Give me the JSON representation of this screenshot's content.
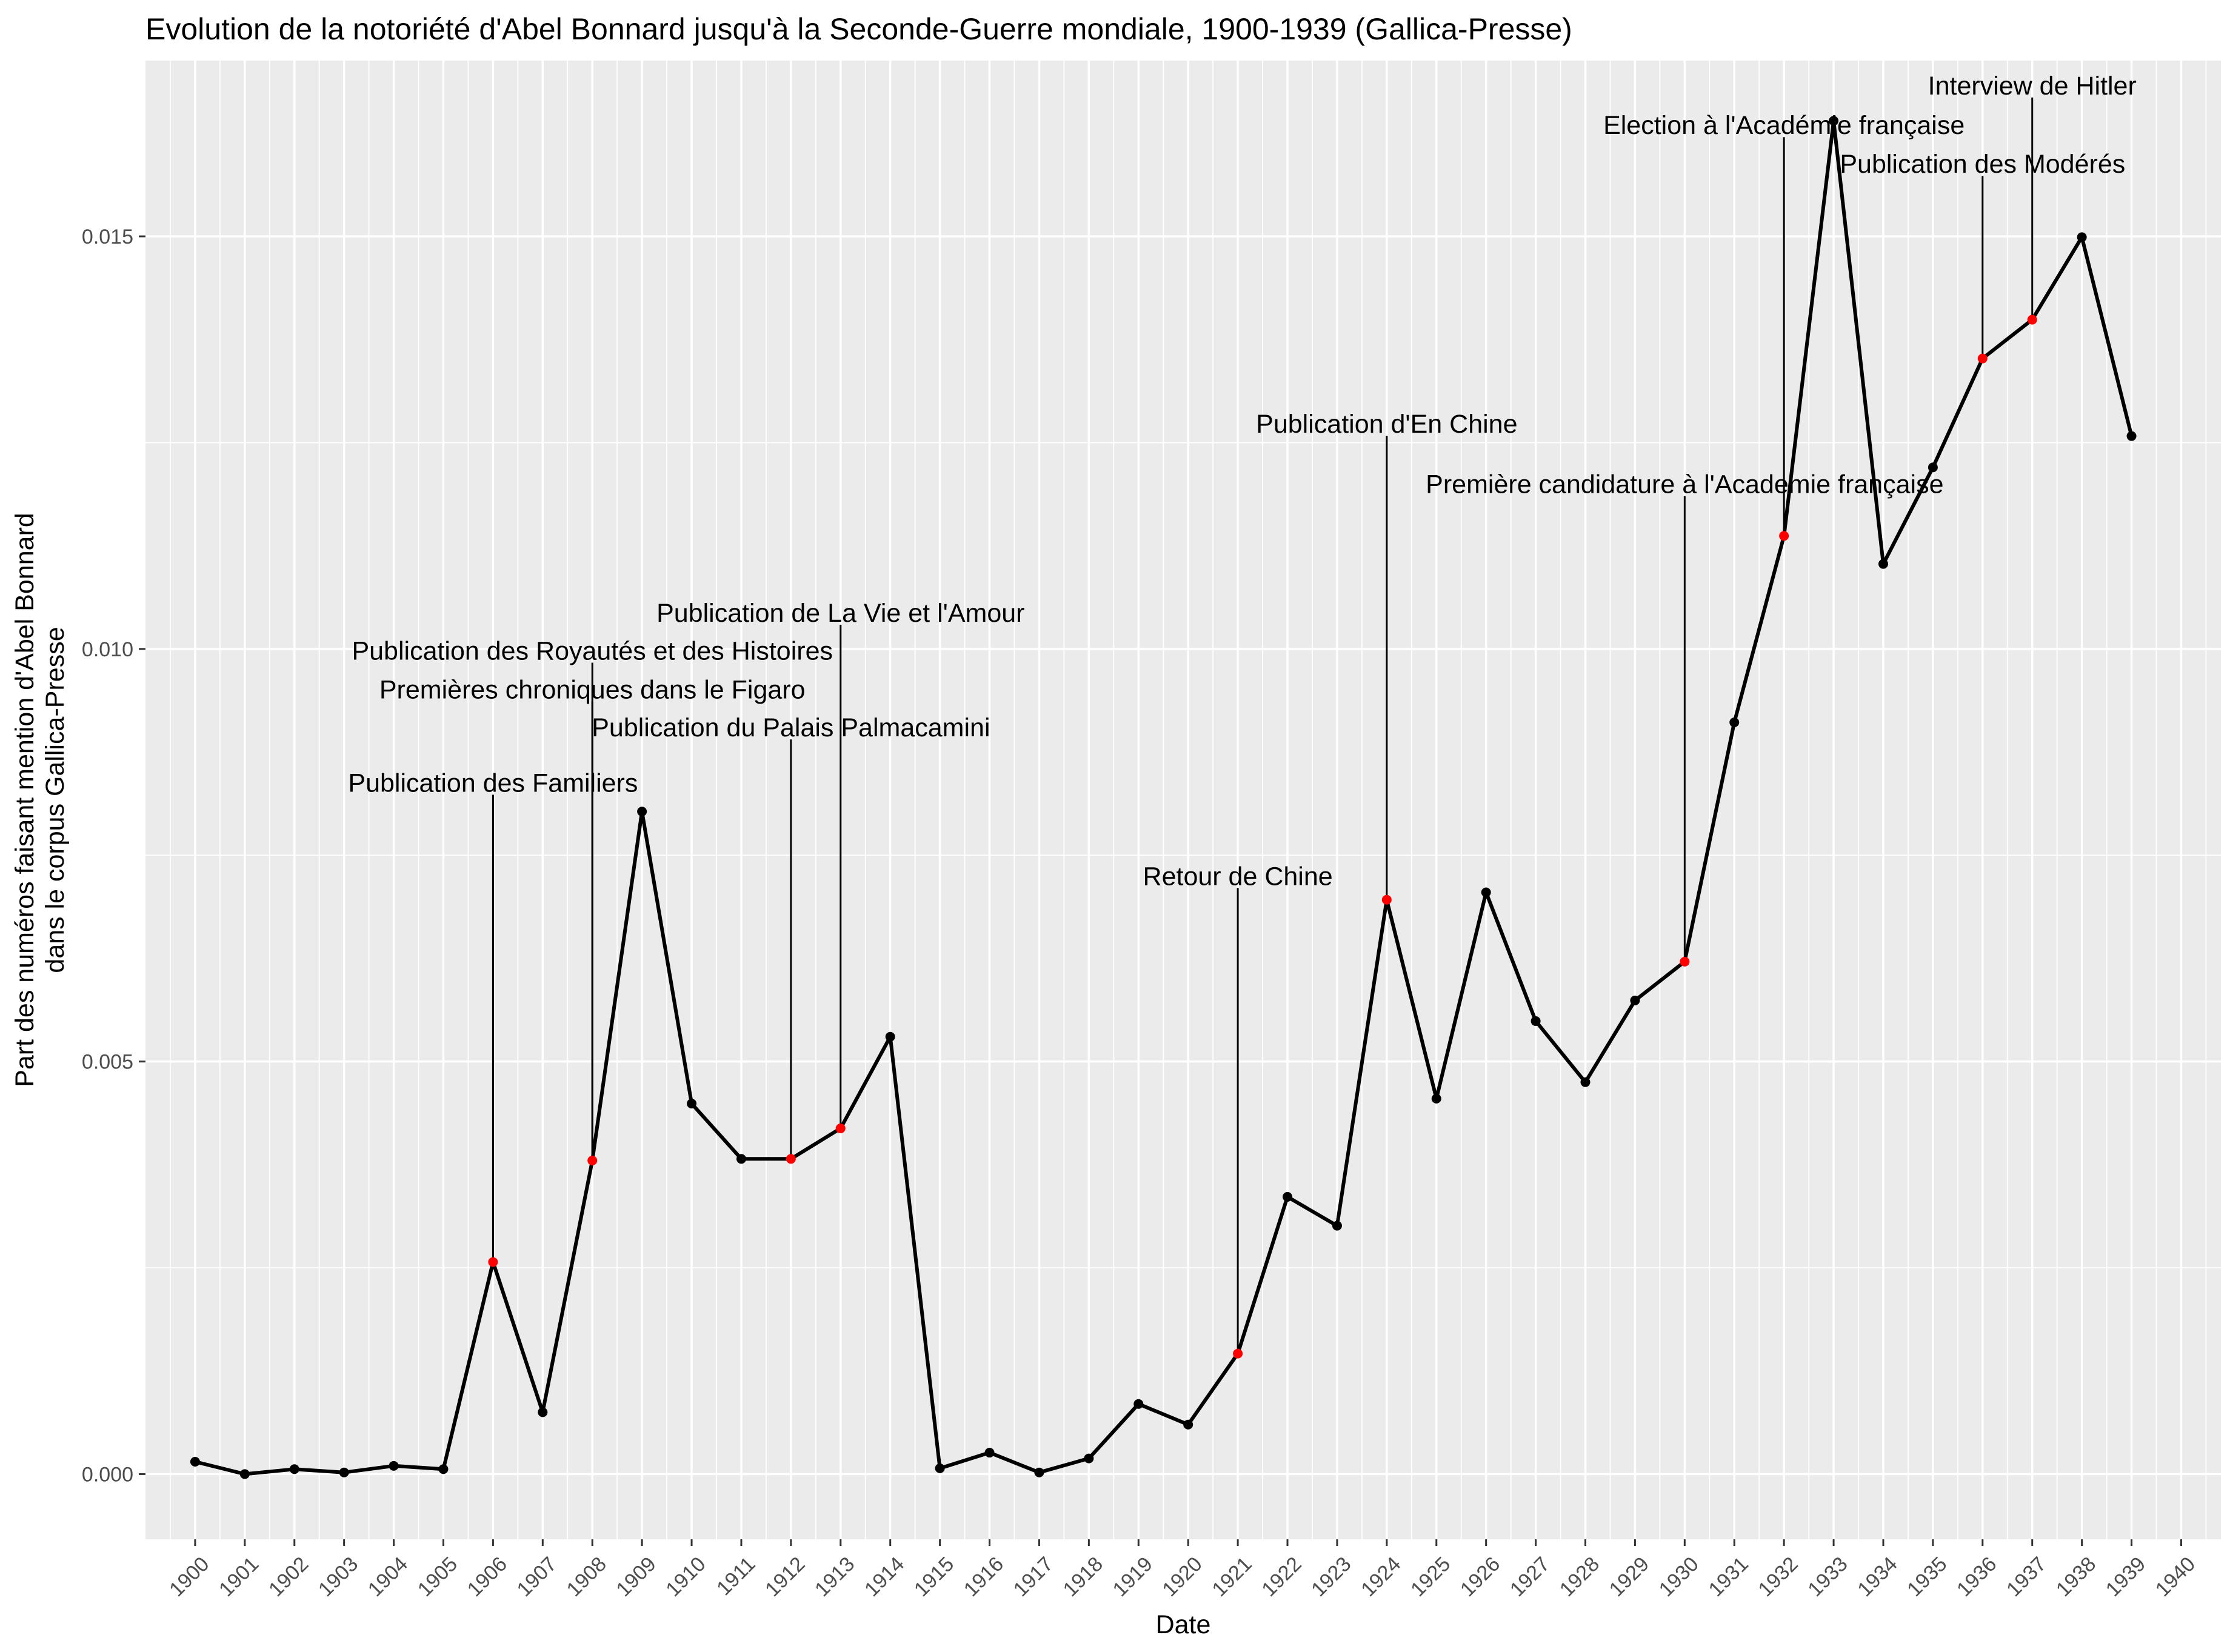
{
  "chart_data": {
    "type": "line",
    "title": "Evolution de la notoriété d'Abel Bonnard jusqu'à la Seconde-Guerre mondiale, 1900-1939 (Gallica-Presse)",
    "xlabel": "Date",
    "ylabel_lines": [
      "Part des numéros faisant mention d'Abel Bonnard",
      "dans le corpus Gallica-Presse"
    ],
    "xlim": [
      1899,
      1940.8
    ],
    "ylim": [
      -0.00079,
      0.01713
    ],
    "x_ticks": [
      1900,
      1901,
      1902,
      1903,
      1904,
      1905,
      1906,
      1907,
      1908,
      1909,
      1910,
      1911,
      1912,
      1913,
      1914,
      1915,
      1916,
      1917,
      1918,
      1919,
      1920,
      1921,
      1922,
      1923,
      1924,
      1925,
      1926,
      1927,
      1928,
      1929,
      1930,
      1931,
      1932,
      1933,
      1934,
      1935,
      1936,
      1937,
      1938,
      1939,
      1940
    ],
    "y_ticks": [
      0.0,
      0.005,
      0.01,
      0.015
    ],
    "y_tick_labels": [
      "0.000",
      "0.005",
      "0.010",
      "0.015"
    ],
    "grid": true,
    "series": [
      {
        "color": "#000000",
        "highlight_color": "#ff0000",
        "points": [
          {
            "x": 1900,
            "y": 0.00015
          },
          {
            "x": 1901,
            "y": 0.0
          },
          {
            "x": 1902,
            "y": 6e-05
          },
          {
            "x": 1903,
            "y": 2e-05
          },
          {
            "x": 1904,
            "y": 0.0001
          },
          {
            "x": 1905,
            "y": 6e-05
          },
          {
            "x": 1906,
            "y": 0.00257,
            "highlight": true
          },
          {
            "x": 1907,
            "y": 0.00075
          },
          {
            "x": 1908,
            "y": 0.0038,
            "highlight": true
          },
          {
            "x": 1909,
            "y": 0.00803
          },
          {
            "x": 1910,
            "y": 0.00449
          },
          {
            "x": 1911,
            "y": 0.00382
          },
          {
            "x": 1912,
            "y": 0.00382,
            "highlight": true
          },
          {
            "x": 1913,
            "y": 0.00419,
            "highlight": true
          },
          {
            "x": 1914,
            "y": 0.0053
          },
          {
            "x": 1915,
            "y": 7e-05
          },
          {
            "x": 1916,
            "y": 0.00026
          },
          {
            "x": 1917,
            "y": 2e-05
          },
          {
            "x": 1918,
            "y": 0.00019
          },
          {
            "x": 1919,
            "y": 0.00085
          },
          {
            "x": 1920,
            "y": 0.0006
          },
          {
            "x": 1921,
            "y": 0.00146,
            "highlight": true
          },
          {
            "x": 1922,
            "y": 0.00336
          },
          {
            "x": 1923,
            "y": 0.00301
          },
          {
            "x": 1924,
            "y": 0.00696,
            "highlight": true
          },
          {
            "x": 1925,
            "y": 0.00455
          },
          {
            "x": 1926,
            "y": 0.00705
          },
          {
            "x": 1927,
            "y": 0.00549
          },
          {
            "x": 1928,
            "y": 0.00475
          },
          {
            "x": 1929,
            "y": 0.00574
          },
          {
            "x": 1930,
            "y": 0.00621,
            "highlight": true
          },
          {
            "x": 1931,
            "y": 0.00911
          },
          {
            "x": 1932,
            "y": 0.01137,
            "highlight": true
          },
          {
            "x": 1933,
            "y": 0.0164
          },
          {
            "x": 1934,
            "y": 0.01103
          },
          {
            "x": 1935,
            "y": 0.0122
          },
          {
            "x": 1936,
            "y": 0.01352,
            "highlight": true
          },
          {
            "x": 1937,
            "y": 0.01399,
            "highlight": true
          },
          {
            "x": 1938,
            "y": 0.01499
          },
          {
            "x": 1939,
            "y": 0.01258
          }
        ]
      }
    ],
    "annotations": [
      {
        "text": "Publication des Familiers",
        "x": 1906,
        "y": 0.00257,
        "label_y": 0.00838
      },
      {
        "text": "Publication des Royautés et des Histoires",
        "x": 1908,
        "y": 0.0038,
        "label_y": 0.00998
      },
      {
        "text": "Premières chroniques dans le Figaro",
        "x": 1908,
        "y": 0.0038,
        "label_y": 0.00951
      },
      {
        "text": "Publication du Palais Palmacamini",
        "x": 1912,
        "y": 0.00382,
        "label_y": 0.00905
      },
      {
        "text": "Publication de La Vie et l'Amour",
        "x": 1913,
        "y": 0.00419,
        "label_y": 0.01044
      },
      {
        "text": "Retour de Chine",
        "x": 1921,
        "y": 0.00146,
        "label_y": 0.00725
      },
      {
        "text": "Publication d'En Chine",
        "x": 1924,
        "y": 0.00696,
        "label_y": 0.01273
      },
      {
        "text": "Première candidature à l'Academie française",
        "x": 1930,
        "y": 0.00621,
        "label_y": 0.012
      },
      {
        "text": "Election à l'Académie française",
        "x": 1932,
        "y": 0.01137,
        "label_y": 0.01635
      },
      {
        "text": "Publication des Modérés",
        "x": 1936,
        "y": 0.01352,
        "label_y": 0.01588
      },
      {
        "text": "Interview de Hitler",
        "x": 1937,
        "y": 0.01399,
        "label_y": 0.01683
      }
    ]
  }
}
